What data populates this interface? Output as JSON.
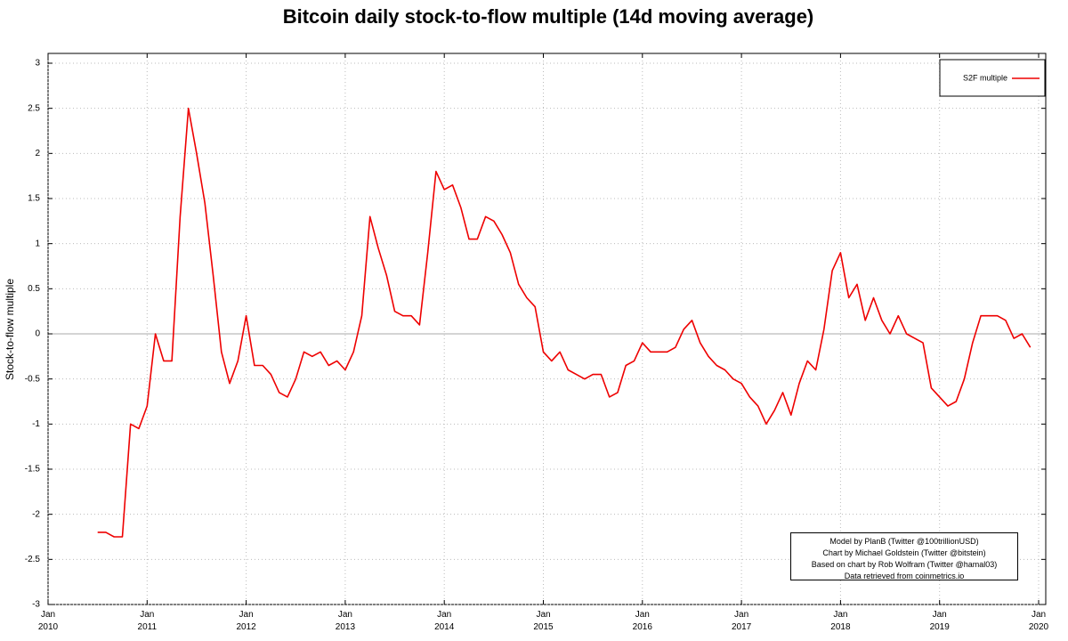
{
  "chart_data": {
    "type": "line",
    "title": "Bitcoin daily stock-to-flow multiple (14d moving average)",
    "ylabel": "Stock-to-flow multiple",
    "x": [
      "2010-07",
      "2010-08",
      "2010-09",
      "2010-10",
      "2010-11",
      "2010-12",
      "2011-01",
      "2011-02",
      "2011-03",
      "2011-04",
      "2011-05",
      "2011-06",
      "2011-07",
      "2011-08",
      "2011-09",
      "2011-10",
      "2011-11",
      "2011-12",
      "2012-01",
      "2012-02",
      "2012-03",
      "2012-04",
      "2012-05",
      "2012-06",
      "2012-07",
      "2012-08",
      "2012-09",
      "2012-10",
      "2012-11",
      "2012-12",
      "2013-01",
      "2013-02",
      "2013-03",
      "2013-04",
      "2013-05",
      "2013-06",
      "2013-07",
      "2013-08",
      "2013-09",
      "2013-10",
      "2013-11",
      "2013-12",
      "2014-01",
      "2014-02",
      "2014-03",
      "2014-04",
      "2014-05",
      "2014-06",
      "2014-07",
      "2014-08",
      "2014-09",
      "2014-10",
      "2014-11",
      "2014-12",
      "2015-01",
      "2015-02",
      "2015-03",
      "2015-04",
      "2015-05",
      "2015-06",
      "2015-07",
      "2015-08",
      "2015-09",
      "2015-10",
      "2015-11",
      "2015-12",
      "2016-01",
      "2016-02",
      "2016-03",
      "2016-04",
      "2016-05",
      "2016-06",
      "2016-07",
      "2016-08",
      "2016-09",
      "2016-10",
      "2016-11",
      "2016-12",
      "2017-01",
      "2017-02",
      "2017-03",
      "2017-04",
      "2017-05",
      "2017-06",
      "2017-07",
      "2017-08",
      "2017-09",
      "2017-10",
      "2017-11",
      "2017-12",
      "2018-01",
      "2018-02",
      "2018-03",
      "2018-04",
      "2018-05",
      "2018-06",
      "2018-07",
      "2018-08",
      "2018-09",
      "2018-10",
      "2018-11",
      "2018-12",
      "2019-01",
      "2019-02",
      "2019-03",
      "2019-04",
      "2019-05",
      "2019-06",
      "2019-07",
      "2019-08",
      "2019-09",
      "2019-10",
      "2019-11",
      "2019-12"
    ],
    "series": [
      {
        "name": "S2F multiple",
        "color": "#ee0000",
        "values": [
          -2.2,
          -2.2,
          -2.25,
          -2.25,
          -1.0,
          -1.05,
          -0.8,
          0.0,
          -0.3,
          -0.3,
          1.3,
          2.5,
          2.0,
          1.45,
          0.65,
          -0.2,
          -0.55,
          -0.3,
          0.2,
          -0.35,
          -0.35,
          -0.45,
          -0.65,
          -0.7,
          -0.5,
          -0.2,
          -0.25,
          -0.2,
          -0.35,
          -0.3,
          -0.4,
          -0.2,
          0.2,
          1.3,
          0.95,
          0.65,
          0.25,
          0.2,
          0.2,
          0.1,
          0.9,
          1.8,
          1.6,
          1.65,
          1.4,
          1.05,
          1.05,
          1.3,
          1.25,
          1.1,
          0.9,
          0.55,
          0.4,
          0.3,
          -0.2,
          -0.3,
          -0.2,
          -0.4,
          -0.45,
          -0.5,
          -0.45,
          -0.45,
          -0.7,
          -0.65,
          -0.35,
          -0.3,
          -0.1,
          -0.2,
          -0.2,
          -0.2,
          -0.15,
          0.05,
          0.15,
          -0.1,
          -0.25,
          -0.35,
          -0.4,
          -0.5,
          -0.55,
          -0.7,
          -0.8,
          -1.0,
          -0.85,
          -0.65,
          -0.9,
          -0.55,
          -0.3,
          -0.4,
          0.05,
          0.7,
          0.9,
          0.4,
          0.55,
          0.15,
          0.4,
          0.15,
          0.0,
          0.2,
          0.0,
          -0.05,
          -0.1,
          -0.6,
          -0.7,
          -0.8,
          -0.75,
          -0.5,
          -0.1,
          0.2,
          0.2,
          0.2,
          0.15,
          -0.05,
          0.0,
          -0.15
        ]
      }
    ],
    "xlim": [
      "2010-01",
      "2020-01"
    ],
    "xticks": [
      {
        "value": "2010-01",
        "label": "Jan 2010"
      },
      {
        "value": "2011-01",
        "label": "Jan 2011"
      },
      {
        "value": "2012-01",
        "label": "Jan 2012"
      },
      {
        "value": "2013-01",
        "label": "Jan 2013"
      },
      {
        "value": "2014-01",
        "label": "Jan 2014"
      },
      {
        "value": "2015-01",
        "label": "Jan 2015"
      },
      {
        "value": "2016-01",
        "label": "Jan 2016"
      },
      {
        "value": "2017-01",
        "label": "Jan 2017"
      },
      {
        "value": "2018-01",
        "label": "Jan 2018"
      },
      {
        "value": "2019-01",
        "label": "Jan 2019"
      },
      {
        "value": "2020-01",
        "label": "Jan 2020"
      }
    ],
    "ylim": [
      -3,
      3
    ],
    "yticks": [
      3,
      2.5,
      2,
      1.5,
      1,
      0.5,
      0,
      -0.5,
      -1,
      -1.5,
      -2,
      -2.5,
      -3
    ],
    "grid": true,
    "legend": "upper right",
    "annotations": [
      "Model by PlanB (Twitter @100trillionUSD)",
      "Chart by Michael Goldstein (Twitter @bitstein)",
      "Based on chart by Rob Wolfram (Twitter @hamal03)",
      "Data retrieved from coinmetrics.io"
    ]
  }
}
